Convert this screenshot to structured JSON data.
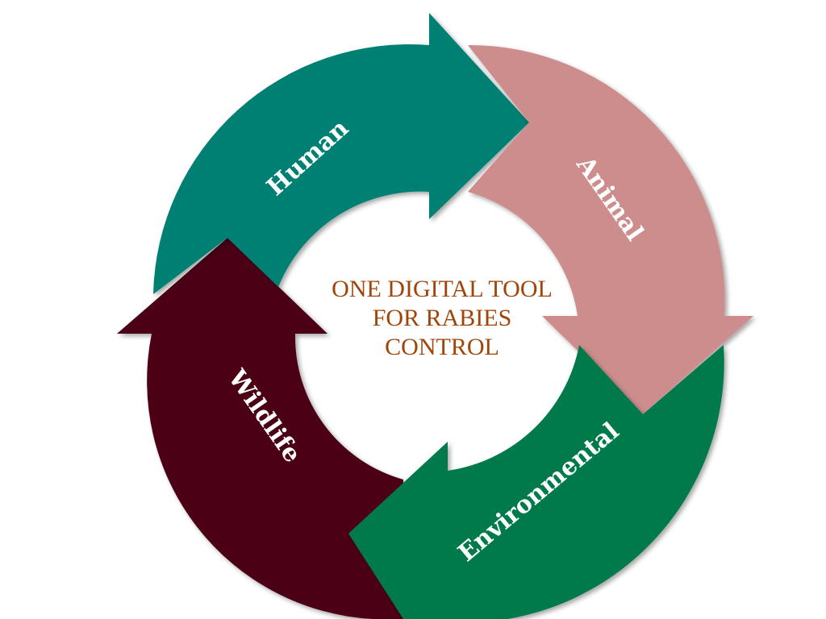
{
  "center": {
    "lines": [
      "ONE DIGITAL TOOL",
      "FOR RABIES",
      "CONTROL"
    ],
    "color": "#A0450A"
  },
  "segments": [
    {
      "label": "Human",
      "color": "#017F73"
    },
    {
      "label": "Animal",
      "color": "#CD8D8D"
    },
    {
      "label": "Environmental",
      "color": "#017A4B"
    },
    {
      "label": "Wildlife",
      "color": "#4B0018"
    }
  ]
}
